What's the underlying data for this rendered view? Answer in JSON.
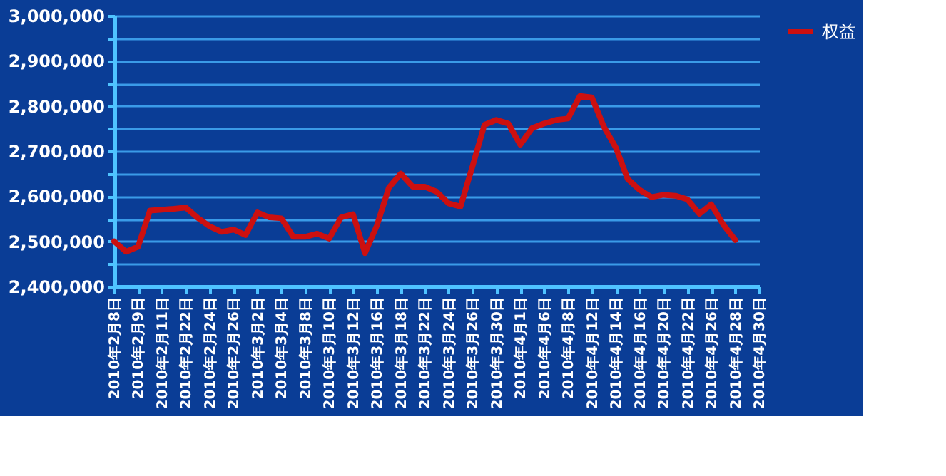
{
  "chart_data": {
    "type": "line",
    "categories": [
      "2010年2月8日",
      null,
      "2010年2月9日",
      null,
      "2010年2月11日",
      null,
      "2010年2月22日",
      null,
      "2010年2月24日",
      null,
      "2010年2月26日",
      null,
      "2010年3月2日",
      null,
      "2010年3月4日",
      null,
      "2010年3月8日",
      null,
      "2010年3月10日",
      null,
      "2010年3月12日",
      null,
      "2010年3月16日",
      null,
      "2010年3月18日",
      null,
      "2010年3月22日",
      null,
      "2010年3月24日",
      null,
      "2010年3月26日",
      null,
      "2010年3月30日",
      null,
      "2010年4月1日",
      null,
      "2010年4月6日",
      null,
      "2010年4月8日",
      null,
      "2010年4月12日",
      null,
      "2010年4月14日",
      null,
      "2010年4月16日",
      null,
      "2010年4月20日",
      null,
      "2010年4月22日",
      null,
      "2010年4月26日",
      null,
      "2010年4月28日",
      null,
      "2010年4月30日"
    ],
    "series": [
      {
        "name": "权益",
        "color": "#cc1010",
        "values": [
          2500000,
          2477000,
          2488000,
          2568000,
          2570000,
          2572000,
          2575000,
          2552000,
          2533000,
          2521000,
          2526000,
          2514000,
          2564000,
          2553000,
          2551000,
          2510000,
          2510000,
          2517000,
          2506000,
          2553000,
          2560000,
          2474000,
          2535000,
          2619000,
          2650000,
          2621000,
          2621000,
          2610000,
          2584000,
          2577000,
          2666000,
          2758000,
          2769000,
          2761000,
          2714000,
          2751000,
          2761000,
          2769000,
          2772000,
          2822000,
          2819000,
          2754000,
          2708000,
          2638000,
          2614000,
          2598000,
          2603000,
          2601000,
          2593000,
          2561000,
          2582000,
          2537000,
          2503000,
          null,
          null
        ]
      }
    ],
    "ylim": [
      2400000,
      3000000
    ],
    "yticks": [
      {
        "value": 2400000,
        "label": "2,400,000"
      },
      {
        "value": 2450000,
        "label": null
      },
      {
        "value": 2500000,
        "label": "2,500,000"
      },
      {
        "value": 2550000,
        "label": null
      },
      {
        "value": 2600000,
        "label": "2,600,000"
      },
      {
        "value": 2650000,
        "label": null
      },
      {
        "value": 2700000,
        "label": "2,700,000"
      },
      {
        "value": 2750000,
        "label": null
      },
      {
        "value": 2800000,
        "label": "2,800,000"
      },
      {
        "value": 2850000,
        "label": null
      },
      {
        "value": 2900000,
        "label": "2,900,000"
      },
      {
        "value": 2950000,
        "label": null
      },
      {
        "value": 3000000,
        "label": "3,000,000"
      }
    ],
    "grid": "y",
    "legend": "right",
    "marker": "none",
    "line_style": "solid"
  }
}
